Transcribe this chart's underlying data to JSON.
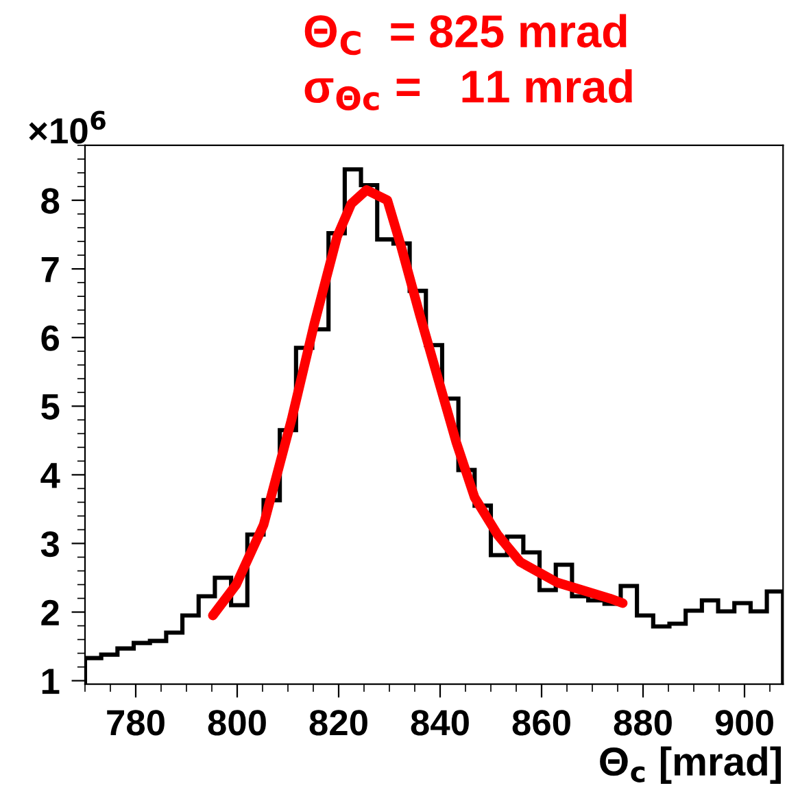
{
  "chart_data": {
    "type": "histogram",
    "xlabel": "Θ$_{c}$ [mrad]",
    "annotations": [
      "Θ$_{C}$  = 825 mrad",
      "σ$_{Θc}$ =   11 mrad",
      "×10$^{6}$"
    ],
    "xlim": [
      770,
      907.6
    ],
    "ylim": [
      0.95,
      8.8
    ],
    "xticks": [
      780,
      800,
      820,
      840,
      860,
      880,
      900
    ],
    "yticks": [
      1,
      2,
      3,
      4,
      5,
      6,
      7,
      8
    ],
    "grid": false,
    "legend": false,
    "series": [
      {
        "color": "#000000",
        "bins": [
          770,
          773.2,
          776.4,
          779.6,
          782.8,
          786,
          789.2,
          792.4,
          795.6,
          798.8,
          802,
          805.2,
          808.4,
          811.6,
          814.8,
          818,
          821.2,
          824.4,
          827.6,
          830.8,
          834,
          837.2,
          840.4,
          843.6,
          846.8,
          850,
          853.2,
          856.4,
          859.6,
          862.8,
          866,
          869.2,
          872.4,
          875.6,
          878.8,
          882,
          885.2,
          888.4,
          891.6,
          894.8,
          898,
          901.2,
          904.4,
          907.6
        ],
        "values": [
          1.33,
          1.38,
          1.47,
          1.55,
          1.58,
          1.7,
          1.95,
          2.23,
          2.5,
          2.1,
          3.13,
          3.63,
          4.65,
          5.85,
          6.12,
          7.52,
          8.45,
          8.22,
          7.43,
          7.37,
          6.68,
          5.89,
          5.11,
          4.07,
          3.55,
          2.83,
          3.1,
          2.87,
          2.32,
          2.69,
          2.23,
          2.17,
          2.12,
          2.38,
          1.95,
          1.79,
          1.83,
          2.02,
          2.17,
          2.01,
          2.13,
          2.01,
          2.3
        ]
      },
      {
        "type": "line",
        "color": "#ff0000",
        "x": [
          795.2,
          799.8,
          805.2,
          810.7,
          815.2,
          819.7,
          822.5,
          825.5,
          829.6,
          832.3,
          836,
          839.6,
          843.2,
          846.8,
          851.3,
          855.8,
          863.1,
          873.4,
          876
        ],
        "values": [
          1.95,
          2.4,
          3.27,
          4.8,
          6.2,
          7.47,
          7.95,
          8.15,
          8.0,
          7.33,
          6.33,
          5.4,
          4.47,
          3.67,
          3.13,
          2.73,
          2.43,
          2.2,
          2.13
        ]
      }
    ]
  }
}
